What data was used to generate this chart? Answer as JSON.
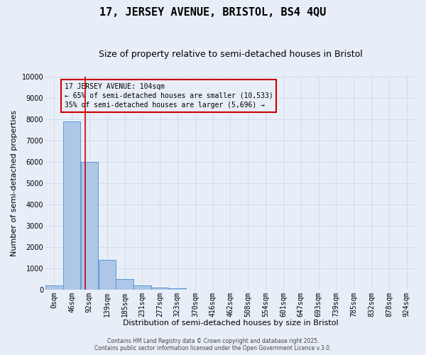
{
  "title": "17, JERSEY AVENUE, BRISTOL, BS4 4QU",
  "subtitle": "Size of property relative to semi-detached houses in Bristol",
  "xlabel": "Distribution of semi-detached houses by size in Bristol",
  "ylabel": "Number of semi-detached properties",
  "bin_labels": [
    "0sqm",
    "46sqm",
    "92sqm",
    "139sqm",
    "185sqm",
    "231sqm",
    "277sqm",
    "323sqm",
    "370sqm",
    "416sqm",
    "462sqm",
    "508sqm",
    "554sqm",
    "601sqm",
    "647sqm",
    "693sqm",
    "739sqm",
    "785sqm",
    "832sqm",
    "878sqm",
    "924sqm"
  ],
  "bin_edges": [
    0,
    46,
    92,
    139,
    185,
    231,
    277,
    323,
    370,
    416,
    462,
    508,
    554,
    601,
    647,
    693,
    739,
    785,
    832,
    878,
    924
  ],
  "bar_heights": [
    200,
    7900,
    6000,
    1400,
    500,
    200,
    100,
    50,
    10,
    0,
    0,
    0,
    0,
    0,
    0,
    0,
    0,
    0,
    0,
    0
  ],
  "bar_color": "#aec6e8",
  "bar_edge_color": "#5b9bd5",
  "vline_x": 104,
  "vline_color": "#cc0000",
  "ylim": [
    0,
    10000
  ],
  "yticks": [
    0,
    1000,
    2000,
    3000,
    4000,
    5000,
    6000,
    7000,
    8000,
    9000,
    10000
  ],
  "annotation_title": "17 JERSEY AVENUE: 104sqm",
  "annotation_line1": "← 65% of semi-detached houses are smaller (10,533)",
  "annotation_line2": "35% of semi-detached houses are larger (5,696) →",
  "annotation_box_color": "#cc0000",
  "grid_color": "#d0d8e8",
  "background_color": "#e8eef8",
  "footer_line1": "Contains HM Land Registry data © Crown copyright and database right 2025.",
  "footer_line2": "Contains public sector information licensed under the Open Government Licence v.3.0.",
  "title_fontsize": 11,
  "subtitle_fontsize": 9,
  "xlabel_fontsize": 8,
  "ylabel_fontsize": 8,
  "tick_fontsize": 7,
  "annotation_fontsize": 7,
  "footer_fontsize": 5.5,
  "xlim_max": 970
}
